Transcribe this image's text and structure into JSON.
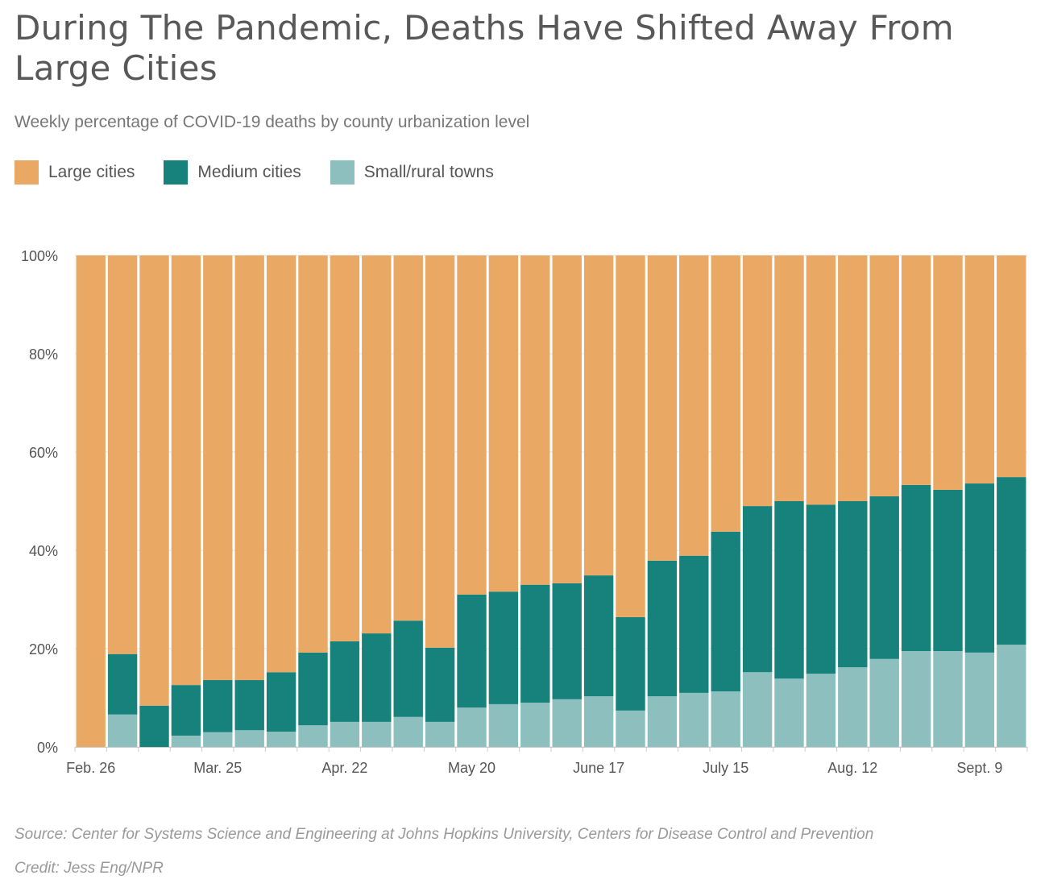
{
  "title": "During The Pandemic, Deaths Have Shifted Away From Large Cities",
  "subtitle": "Weekly percentage of COVID-19 deaths by county urbanization level",
  "source": "Source: Center for Systems Science and Engineering at Johns Hopkins University, Centers for Disease Control and Prevention",
  "credit": "Credit: Jess Eng/NPR",
  "legend": [
    {
      "label": "Large cities",
      "color": "#e9a863"
    },
    {
      "label": "Medium cities",
      "color": "#17817c"
    },
    {
      "label": "Small/rural towns",
      "color": "#8dbfbf"
    }
  ],
  "chart_data": {
    "type": "bar",
    "stacked": true,
    "ylim": [
      0,
      100
    ],
    "y_ticks": [
      "0%",
      "20%",
      "40%",
      "60%",
      "80%",
      "100%"
    ],
    "y_tick_values": [
      0,
      20,
      40,
      60,
      80,
      100
    ],
    "x_ticks": [
      {
        "label": "Feb. 26",
        "bar": 0
      },
      {
        "label": "Mar. 25",
        "bar": 4
      },
      {
        "label": "Apr. 22",
        "bar": 8
      },
      {
        "label": "May 20",
        "bar": 12
      },
      {
        "label": "June 17",
        "bar": 16
      },
      {
        "label": "July 15",
        "bar": 20
      },
      {
        "label": "Aug. 12",
        "bar": 24
      },
      {
        "label": "Sept. 9",
        "bar": 28
      }
    ],
    "grid": true,
    "legend_position": "top-left",
    "series": [
      {
        "name": "Small/rural towns",
        "color": "#8dbfbf",
        "values": [
          0,
          6.6,
          0,
          2.3,
          3.0,
          3.4,
          3.1,
          4.4,
          5.1,
          5.1,
          6.1,
          5.1,
          8.0,
          8.7,
          9.0,
          9.7,
          10.3,
          7.4,
          10.3,
          11.0,
          11.3,
          15.2,
          13.9,
          14.9,
          16.2,
          17.9,
          19.5,
          19.5,
          19.2,
          20.8
        ]
      },
      {
        "name": "Medium cities",
        "color": "#17817c",
        "values": [
          0,
          12.3,
          8.4,
          10.3,
          10.6,
          10.2,
          12.1,
          14.8,
          16.4,
          18.0,
          19.6,
          15.1,
          23.0,
          22.9,
          24.0,
          23.6,
          24.6,
          19.0,
          27.6,
          27.9,
          32.5,
          33.8,
          36.1,
          34.4,
          33.8,
          33.1,
          33.8,
          32.8,
          34.4,
          34.1
        ]
      },
      {
        "name": "Large cities",
        "color": "#e9a863",
        "values": [
          100,
          81.1,
          91.6,
          87.4,
          86.4,
          86.4,
          84.8,
          80.8,
          78.5,
          76.9,
          74.3,
          79.8,
          69.0,
          68.4,
          67.0,
          66.7,
          65.1,
          73.6,
          62.1,
          61.1,
          56.2,
          51.0,
          50.0,
          50.7,
          50.0,
          49.0,
          46.7,
          47.7,
          46.4,
          45.1
        ]
      }
    ]
  }
}
